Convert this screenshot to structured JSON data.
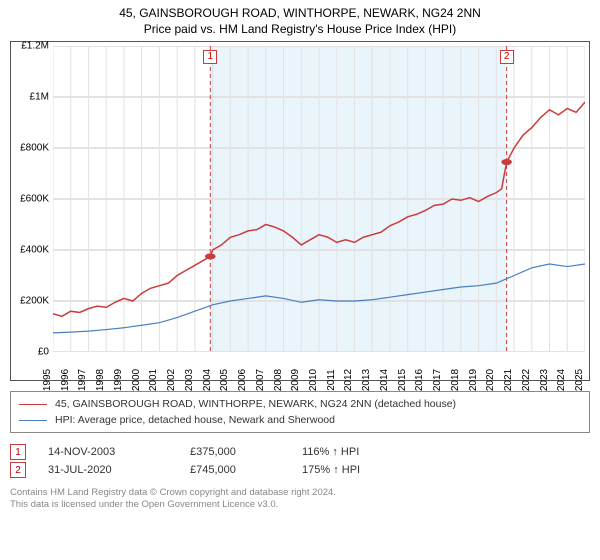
{
  "title": {
    "line1": "45, GAINSBOROUGH ROAD, WINTHORPE, NEWARK, NG24 2NN",
    "line2": "Price paid vs. HM Land Registry's House Price Index (HPI)",
    "fontsize": 12,
    "color": "#000000"
  },
  "chart": {
    "type": "line",
    "background_color": "#ffffff",
    "border_color": "#555555",
    "grid_color": "#e2e2e2",
    "highlight_band": {
      "start_year": 2003.87,
      "end_year": 2020.58,
      "fill": "#e9f4fb",
      "border_dash": "4 3",
      "border_color": "#cc3b3b"
    },
    "x": {
      "min": 1995,
      "max": 2025,
      "ticks": [
        1995,
        1996,
        1997,
        1998,
        1999,
        2000,
        2001,
        2002,
        2003,
        2004,
        2005,
        2006,
        2007,
        2008,
        2009,
        2010,
        2011,
        2012,
        2013,
        2014,
        2015,
        2016,
        2017,
        2018,
        2019,
        2020,
        2021,
        2022,
        2023,
        2024,
        2025
      ],
      "label_fontsize": 10,
      "label_color": "#000000",
      "rotation": -90
    },
    "y": {
      "min": 0,
      "max": 1200000,
      "ticks": [
        0,
        200000,
        400000,
        600000,
        800000,
        1000000,
        1200000
      ],
      "tick_labels": [
        "£0",
        "£200K",
        "£400K",
        "£600K",
        "£800K",
        "£1M",
        "£1.2M"
      ],
      "label_fontsize": 10,
      "label_color": "#000000"
    },
    "series": [
      {
        "id": "price_paid",
        "label": "45, GAINSBOROUGH ROAD, WINTHORPE, NEWARK, NG24 2NN (detached house)",
        "color": "#cc3b3b",
        "width": 1.5,
        "points": [
          [
            1995,
            150000
          ],
          [
            1995.5,
            140000
          ],
          [
            1996,
            160000
          ],
          [
            1996.5,
            155000
          ],
          [
            1997,
            170000
          ],
          [
            1997.5,
            180000
          ],
          [
            1998,
            175000
          ],
          [
            1998.5,
            195000
          ],
          [
            1999,
            210000
          ],
          [
            1999.5,
            200000
          ],
          [
            2000,
            230000
          ],
          [
            2000.5,
            250000
          ],
          [
            2001,
            260000
          ],
          [
            2001.5,
            270000
          ],
          [
            2002,
            300000
          ],
          [
            2002.5,
            320000
          ],
          [
            2003,
            340000
          ],
          [
            2003.5,
            360000
          ],
          [
            2003.87,
            375000
          ],
          [
            2004,
            400000
          ],
          [
            2004.5,
            420000
          ],
          [
            2005,
            450000
          ],
          [
            2005.5,
            460000
          ],
          [
            2006,
            475000
          ],
          [
            2006.5,
            480000
          ],
          [
            2007,
            500000
          ],
          [
            2007.5,
            490000
          ],
          [
            2008,
            475000
          ],
          [
            2008.5,
            450000
          ],
          [
            2009,
            420000
          ],
          [
            2009.5,
            440000
          ],
          [
            2010,
            460000
          ],
          [
            2010.5,
            450000
          ],
          [
            2011,
            430000
          ],
          [
            2011.5,
            440000
          ],
          [
            2012,
            430000
          ],
          [
            2012.5,
            450000
          ],
          [
            2013,
            460000
          ],
          [
            2013.5,
            470000
          ],
          [
            2014,
            495000
          ],
          [
            2014.5,
            510000
          ],
          [
            2015,
            530000
          ],
          [
            2015.5,
            540000
          ],
          [
            2016,
            555000
          ],
          [
            2016.5,
            575000
          ],
          [
            2017,
            580000
          ],
          [
            2017.5,
            600000
          ],
          [
            2018,
            595000
          ],
          [
            2018.5,
            605000
          ],
          [
            2019,
            590000
          ],
          [
            2019.5,
            610000
          ],
          [
            2020,
            625000
          ],
          [
            2020.3,
            640000
          ],
          [
            2020.58,
            745000
          ],
          [
            2021,
            800000
          ],
          [
            2021.5,
            850000
          ],
          [
            2022,
            880000
          ],
          [
            2022.5,
            920000
          ],
          [
            2023,
            950000
          ],
          [
            2023.5,
            930000
          ],
          [
            2024,
            955000
          ],
          [
            2024.5,
            940000
          ],
          [
            2025,
            980000
          ]
        ]
      },
      {
        "id": "hpi",
        "label": "HPI: Average price, detached house, Newark and Sherwood",
        "color": "#4a7fbf",
        "width": 1.2,
        "points": [
          [
            1995,
            75000
          ],
          [
            1996,
            78000
          ],
          [
            1997,
            82000
          ],
          [
            1998,
            88000
          ],
          [
            1999,
            95000
          ],
          [
            2000,
            105000
          ],
          [
            2001,
            115000
          ],
          [
            2002,
            135000
          ],
          [
            2003,
            160000
          ],
          [
            2004,
            185000
          ],
          [
            2005,
            200000
          ],
          [
            2006,
            210000
          ],
          [
            2007,
            220000
          ],
          [
            2008,
            210000
          ],
          [
            2009,
            195000
          ],
          [
            2010,
            205000
          ],
          [
            2011,
            200000
          ],
          [
            2012,
            200000
          ],
          [
            2013,
            205000
          ],
          [
            2014,
            215000
          ],
          [
            2015,
            225000
          ],
          [
            2016,
            235000
          ],
          [
            2017,
            245000
          ],
          [
            2018,
            255000
          ],
          [
            2019,
            260000
          ],
          [
            2020,
            270000
          ],
          [
            2021,
            300000
          ],
          [
            2022,
            330000
          ],
          [
            2023,
            345000
          ],
          [
            2024,
            335000
          ],
          [
            2025,
            345000
          ]
        ]
      }
    ],
    "markers": [
      {
        "id": 1,
        "label": "1",
        "year": 2003.87,
        "value": 375000,
        "color": "#cc3b3b",
        "box_border": "#cc3b3b",
        "box_fill": "#ffffff"
      },
      {
        "id": 2,
        "label": "2",
        "year": 2020.58,
        "value": 745000,
        "color": "#cc3b3b",
        "box_border": "#cc3b3b",
        "box_fill": "#ffffff"
      }
    ],
    "marker_label_box": {
      "fontsize": 10,
      "text_color": "#cc0000"
    }
  },
  "legend": {
    "border_color": "#888888",
    "fontsize": 10.5,
    "text_color": "#333333",
    "items": [
      {
        "color": "#cc3b3b",
        "width": 1.5,
        "label": "45, GAINSBOROUGH ROAD, WINTHORPE, NEWARK, NG24 2NN (detached house)"
      },
      {
        "color": "#4a7fbf",
        "width": 1.2,
        "label": "HPI: Average price, detached house, Newark and Sherwood"
      }
    ]
  },
  "marker_table": {
    "fontsize": 11,
    "text_color": "#333333",
    "rows": [
      {
        "num": "1",
        "date": "14-NOV-2003",
        "price": "£375,000",
        "hpi": "116% ↑ HPI",
        "box_border": "#cc3b3b"
      },
      {
        "num": "2",
        "date": "31-JUL-2020",
        "price": "£745,000",
        "hpi": "175% ↑ HPI",
        "box_border": "#cc3b3b"
      }
    ]
  },
  "footer": {
    "line1": "Contains HM Land Registry data © Crown copyright and database right 2024.",
    "line2": "This data is licensed under the Open Government Licence v3.0.",
    "fontsize": 9.5,
    "color": "#888888"
  }
}
